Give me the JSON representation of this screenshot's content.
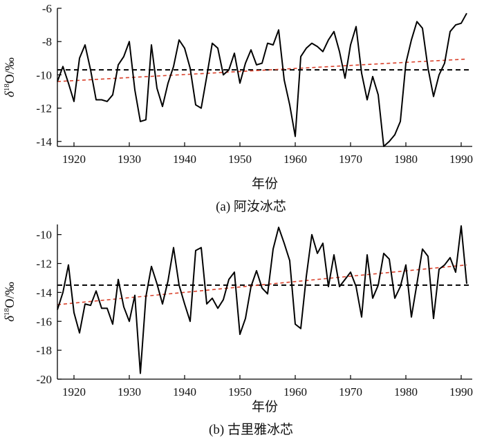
{
  "charts": [
    {
      "type": "line",
      "xlabel": "年份",
      "ylabel_delta": "δ",
      "ylabel_super": "18",
      "ylabel_rest": "O/‰",
      "caption": "(a) 阿汝冰芯",
      "xlim": [
        1917,
        1992
      ],
      "ylim": [
        -14.3,
        -6
      ],
      "xticks": [
        1920,
        1930,
        1940,
        1950,
        1960,
        1970,
        1980,
        1990
      ],
      "yticks": [
        -6,
        -8,
        -10,
        -12,
        -14
      ],
      "mean": -9.7,
      "trend": {
        "x": [
          1917,
          1991
        ],
        "y": [
          -10.4,
          -9.05
        ]
      },
      "colors": {
        "series": "#000000",
        "mean": "#000000",
        "trend": "#d9412b"
      },
      "years": [
        1917,
        1918,
        1919,
        1920,
        1921,
        1922,
        1923,
        1924,
        1925,
        1926,
        1927,
        1928,
        1929,
        1930,
        1931,
        1932,
        1933,
        1934,
        1935,
        1936,
        1937,
        1938,
        1939,
        1940,
        1941,
        1942,
        1943,
        1944,
        1945,
        1946,
        1947,
        1948,
        1949,
        1950,
        1951,
        1952,
        1953,
        1954,
        1955,
        1956,
        1957,
        1958,
        1959,
        1960,
        1961,
        1962,
        1963,
        1964,
        1965,
        1966,
        1967,
        1968,
        1969,
        1970,
        1971,
        1972,
        1973,
        1974,
        1975,
        1976,
        1977,
        1978,
        1979,
        1980,
        1981,
        1982,
        1983,
        1984,
        1985,
        1986,
        1987,
        1988,
        1989,
        1990,
        1991
      ],
      "values": [
        -10.4,
        -9.5,
        -10.5,
        -11.6,
        -9.0,
        -8.2,
        -9.7,
        -11.5,
        -11.5,
        -11.6,
        -11.2,
        -9.4,
        -8.9,
        -8.0,
        -10.9,
        -12.8,
        -12.7,
        -8.2,
        -10.8,
        -11.9,
        -10.5,
        -9.5,
        -7.9,
        -8.4,
        -9.6,
        -11.8,
        -12.0,
        -10.1,
        -8.1,
        -8.4,
        -10.0,
        -9.7,
        -8.7,
        -10.5,
        -9.3,
        -8.5,
        -9.4,
        -9.3,
        -8.1,
        -8.2,
        -7.3,
        -10.3,
        -11.8,
        -13.7,
        -8.9,
        -8.4,
        -8.1,
        -8.3,
        -8.6,
        -7.9,
        -7.4,
        -8.6,
        -10.2,
        -8.2,
        -7.1,
        -9.9,
        -11.5,
        -10.1,
        -11.2,
        -14.3,
        -14.0,
        -13.6,
        -12.8,
        -9.3,
        -7.9,
        -6.8,
        -7.2,
        -9.6,
        -11.3,
        -10.0,
        -9.3,
        -7.4,
        -7.0,
        -6.9,
        -6.3
      ]
    },
    {
      "type": "line",
      "xlabel": "年份",
      "ylabel_delta": "δ",
      "ylabel_super": "18",
      "ylabel_rest": "O/‰",
      "caption": "(b) 古里雅冰芯",
      "xlim": [
        1917,
        1992
      ],
      "ylim": [
        -20,
        -9.3
      ],
      "xticks": [
        1920,
        1930,
        1940,
        1950,
        1960,
        1970,
        1980,
        1990
      ],
      "yticks": [
        -10,
        -12,
        -14,
        -16,
        -18,
        -20
      ],
      "mean": -13.5,
      "trend": {
        "x": [
          1917,
          1991
        ],
        "y": [
          -14.85,
          -12.1
        ]
      },
      "colors": {
        "series": "#000000",
        "mean": "#000000",
        "trend": "#d9412b"
      },
      "years": [
        1917,
        1918,
        1919,
        1920,
        1921,
        1922,
        1923,
        1924,
        1925,
        1926,
        1927,
        1928,
        1929,
        1930,
        1931,
        1932,
        1933,
        1934,
        1935,
        1936,
        1937,
        1938,
        1939,
        1940,
        1941,
        1942,
        1943,
        1944,
        1945,
        1946,
        1947,
        1948,
        1949,
        1950,
        1951,
        1952,
        1953,
        1954,
        1955,
        1956,
        1957,
        1958,
        1959,
        1960,
        1961,
        1962,
        1963,
        1964,
        1965,
        1966,
        1967,
        1968,
        1969,
        1970,
        1971,
        1972,
        1973,
        1974,
        1975,
        1976,
        1977,
        1978,
        1979,
        1980,
        1981,
        1982,
        1983,
        1984,
        1985,
        1986,
        1987,
        1988,
        1989,
        1990,
        1991
      ],
      "values": [
        -15.2,
        -14.0,
        -12.1,
        -15.4,
        -16.8,
        -14.8,
        -14.9,
        -13.9,
        -15.1,
        -15.1,
        -16.2,
        -13.1,
        -15.0,
        -16.0,
        -14.2,
        -19.6,
        -14.3,
        -12.2,
        -13.4,
        -14.8,
        -13.2,
        -10.9,
        -13.5,
        -14.8,
        -16.0,
        -11.1,
        -10.9,
        -14.8,
        -14.4,
        -15.1,
        -14.5,
        -13.1,
        -12.6,
        -16.9,
        -15.8,
        -13.6,
        -12.5,
        -13.7,
        -14.1,
        -11.0,
        -9.5,
        -10.6,
        -11.8,
        -16.2,
        -16.5,
        -12.9,
        -10.0,
        -11.3,
        -10.6,
        -13.6,
        -11.4,
        -13.6,
        -13.1,
        -12.6,
        -13.6,
        -15.7,
        -11.4,
        -14.4,
        -13.5,
        -11.3,
        -11.7,
        -14.4,
        -13.6,
        -12.1,
        -15.7,
        -13.4,
        -11.0,
        -11.5,
        -15.8,
        -12.4,
        -12.1,
        -11.6,
        -12.6,
        -9.4,
        -13.4
      ]
    }
  ]
}
